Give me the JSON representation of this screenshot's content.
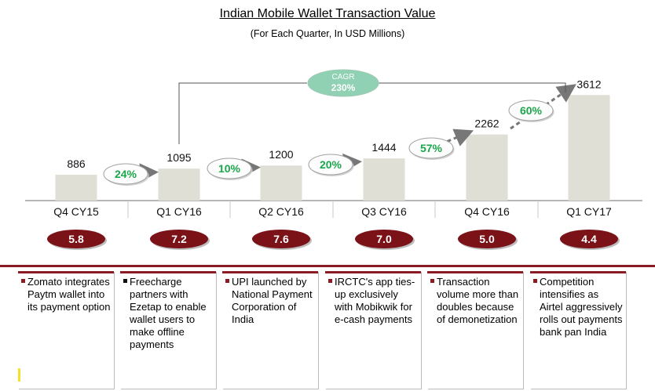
{
  "header": {
    "title": "Indian Mobile Wallet Transaction Value",
    "subtitle": "(For Each Quarter, In USD Millions)"
  },
  "chart_data": {
    "type": "bar",
    "title": "Indian Mobile Wallet Transaction Value",
    "subtitle": "(For Each Quarter, In USD Millions)",
    "categories": [
      "Q4 CY15",
      "Q1 CY16",
      "Q2 CY16",
      "Q3 CY16",
      "Q4 CY16",
      "Q1 CY17"
    ],
    "values": [
      886,
      1095,
      1200,
      1444,
      2262,
      3612
    ],
    "value_labels": [
      "886",
      "1095",
      "1200",
      "1444",
      "2262",
      "3612"
    ],
    "growth_labels": [
      "24%",
      "10%",
      "20%",
      "57%",
      "60%"
    ],
    "cagr": {
      "label": "CAGR",
      "value": "230%"
    },
    "badges": [
      "5.8",
      "7.2",
      "7.6",
      "7.0",
      "5.0",
      "4.4"
    ],
    "ylim": [
      0,
      4000
    ],
    "grid": false,
    "legend": "none"
  },
  "cards": [
    {
      "text": "Zomato integrates Paytm wallet into its payment option"
    },
    {
      "text": "Freecharge partners with Ezetap to enable wallet users to make offline payments"
    },
    {
      "text": "UPI launched by National Payment Corporation of India"
    },
    {
      "text": "IRCTC's app ties-up exclusively with Mobikwik for e-cash payments"
    },
    {
      "text": "Transaction volume more than doubles because of demonetization"
    },
    {
      "text": "Competition intensifies as Airtel aggressively rolls out payments bank pan India"
    }
  ],
  "colors": {
    "bar": "#dfdfd6",
    "badge": "#7a1218",
    "accent_red": "#8c1c24",
    "green_text": "#1aa64a",
    "cagr_fill": "#8fd1b2",
    "bullet_black": "#111111",
    "bullet_red": "#8c1c24"
  }
}
